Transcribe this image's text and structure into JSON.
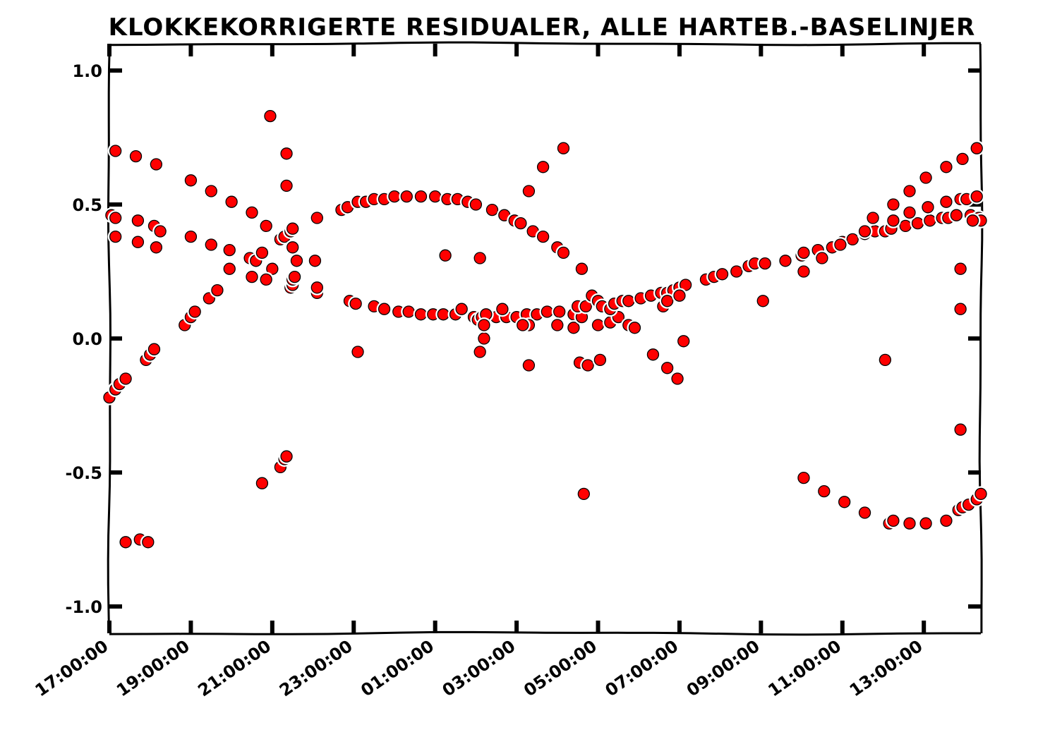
{
  "chart_data": {
    "type": "scatter",
    "title": "KLOKKEKORRIGERTE RESIDUALER, ALLE HARTEB.-BASELINJER",
    "xlabel": "",
    "ylabel": "",
    "x_axis": "time of day (hours from 17:00:00, wrapping past midnight)",
    "xlim": [
      0,
      21.4
    ],
    "ylim": [
      -1.1,
      1.1
    ],
    "grid": false,
    "legend": "none",
    "marker_color": "#ff0000",
    "marker_edge_color": "#000000",
    "xticks": [
      {
        "x": 0,
        "label": "17:00:00"
      },
      {
        "x": 2,
        "label": "19:00:00"
      },
      {
        "x": 4,
        "label": "21:00:00"
      },
      {
        "x": 6,
        "label": "23:00:00"
      },
      {
        "x": 8,
        "label": "01:00:00"
      },
      {
        "x": 10,
        "label": "03:00:00"
      },
      {
        "x": 12,
        "label": "05:00:00"
      },
      {
        "x": 14,
        "label": "07:00:00"
      },
      {
        "x": 16,
        "label": "09:00:00"
      },
      {
        "x": 18,
        "label": "11:00:00"
      },
      {
        "x": 20,
        "label": "13:00:00"
      }
    ],
    "yticks": [
      {
        "y": 1.0,
        "label": "1.0"
      },
      {
        "y": 0.5,
        "label": "0.5"
      },
      {
        "y": 0.0,
        "label": "0.0"
      },
      {
        "y": -0.5,
        "label": "-0.5"
      },
      {
        "y": -1.0,
        "label": "-1.0"
      }
    ],
    "points": [
      [
        0.15,
        0.7
      ],
      [
        0.65,
        0.68
      ],
      [
        1.15,
        0.65
      ],
      [
        2.0,
        0.59
      ],
      [
        2.5,
        0.55
      ],
      [
        3.0,
        0.51
      ],
      [
        3.5,
        0.47
      ],
      [
        3.85,
        0.42
      ],
      [
        0.05,
        0.46
      ],
      [
        0.15,
        0.45
      ],
      [
        0.7,
        0.44
      ],
      [
        1.1,
        0.42
      ],
      [
        1.25,
        0.4
      ],
      [
        0.15,
        0.38
      ],
      [
        0.7,
        0.36
      ],
      [
        1.15,
        0.34
      ],
      [
        2.0,
        0.38
      ],
      [
        2.5,
        0.35
      ],
      [
        2.95,
        0.33
      ],
      [
        3.45,
        0.3
      ],
      [
        3.6,
        0.29
      ],
      [
        3.75,
        0.32
      ],
      [
        4.0,
        0.26
      ],
      [
        0.0,
        -0.22
      ],
      [
        0.15,
        -0.19
      ],
      [
        0.25,
        -0.17
      ],
      [
        0.4,
        -0.15
      ],
      [
        0.9,
        -0.08
      ],
      [
        1.0,
        -0.06
      ],
      [
        1.1,
        -0.04
      ],
      [
        1.85,
        0.05
      ],
      [
        2.0,
        0.08
      ],
      [
        2.1,
        0.1
      ],
      [
        2.45,
        0.15
      ],
      [
        2.65,
        0.18
      ],
      [
        2.95,
        0.26
      ],
      [
        3.5,
        0.23
      ],
      [
        3.85,
        0.22
      ],
      [
        3.95,
        0.83
      ],
      [
        4.35,
        0.69
      ],
      [
        4.35,
        0.57
      ],
      [
        4.2,
        0.37
      ],
      [
        4.3,
        0.38
      ],
      [
        4.45,
        0.4
      ],
      [
        4.5,
        0.41
      ],
      [
        4.5,
        0.34
      ],
      [
        4.6,
        0.29
      ],
      [
        5.05,
        0.29
      ],
      [
        4.45,
        0.19
      ],
      [
        4.5,
        0.2
      ],
      [
        4.5,
        0.22
      ],
      [
        4.55,
        0.23
      ],
      [
        5.1,
        0.17
      ],
      [
        5.1,
        0.19
      ],
      [
        3.75,
        -0.54
      ],
      [
        4.2,
        -0.48
      ],
      [
        4.3,
        -0.45
      ],
      [
        4.35,
        -0.44
      ],
      [
        0.4,
        -0.76
      ],
      [
        0.75,
        -0.75
      ],
      [
        0.95,
        -0.76
      ],
      [
        5.1,
        0.45
      ],
      [
        5.7,
        0.48
      ],
      [
        5.85,
        0.49
      ],
      [
        6.1,
        0.51
      ],
      [
        6.3,
        0.51
      ],
      [
        6.5,
        0.52
      ],
      [
        6.75,
        0.52
      ],
      [
        7.0,
        0.53
      ],
      [
        7.3,
        0.53
      ],
      [
        7.65,
        0.53
      ],
      [
        8.0,
        0.53
      ],
      [
        8.3,
        0.52
      ],
      [
        8.55,
        0.52
      ],
      [
        8.8,
        0.51
      ],
      [
        9.0,
        0.5
      ],
      [
        9.4,
        0.48
      ],
      [
        9.7,
        0.46
      ],
      [
        9.95,
        0.44
      ],
      [
        10.1,
        0.43
      ],
      [
        10.4,
        0.4
      ],
      [
        10.65,
        0.38
      ],
      [
        11.0,
        0.34
      ],
      [
        11.15,
        0.32
      ],
      [
        11.6,
        0.26
      ],
      [
        5.9,
        0.14
      ],
      [
        6.05,
        0.13
      ],
      [
        6.5,
        0.12
      ],
      [
        6.75,
        0.11
      ],
      [
        7.1,
        0.1
      ],
      [
        7.35,
        0.1
      ],
      [
        7.65,
        0.09
      ],
      [
        7.95,
        0.09
      ],
      [
        8.2,
        0.09
      ],
      [
        8.5,
        0.09
      ],
      [
        8.65,
        0.11
      ],
      [
        8.95,
        0.08
      ],
      [
        9.05,
        0.07
      ],
      [
        9.15,
        0.08
      ],
      [
        9.5,
        0.08
      ],
      [
        9.75,
        0.08
      ],
      [
        10.0,
        0.08
      ],
      [
        10.25,
        0.09
      ],
      [
        10.5,
        0.09
      ],
      [
        10.75,
        0.1
      ],
      [
        11.05,
        0.1
      ],
      [
        11.4,
        0.09
      ],
      [
        9.25,
        0.09
      ],
      [
        9.65,
        0.11
      ],
      [
        10.3,
        0.05
      ],
      [
        11.0,
        0.05
      ],
      [
        11.4,
        0.04
      ],
      [
        12.0,
        0.05
      ],
      [
        12.3,
        0.06
      ],
      [
        12.5,
        0.08
      ],
      [
        12.75,
        0.05
      ],
      [
        12.9,
        0.04
      ],
      [
        6.1,
        -0.05
      ],
      [
        9.1,
        -0.05
      ],
      [
        9.2,
        0.0
      ],
      [
        9.2,
        0.05
      ],
      [
        10.15,
        0.05
      ],
      [
        10.3,
        0.55
      ],
      [
        10.65,
        0.64
      ],
      [
        11.15,
        0.71
      ],
      [
        8.25,
        0.31
      ],
      [
        9.1,
        0.3
      ],
      [
        10.3,
        -0.1
      ],
      [
        11.6,
        0.1
      ],
      [
        11.6,
        0.08
      ],
      [
        11.5,
        0.12
      ],
      [
        11.7,
        0.12
      ],
      [
        11.85,
        0.16
      ],
      [
        12.0,
        0.14
      ],
      [
        12.1,
        0.12
      ],
      [
        12.3,
        0.11
      ],
      [
        12.4,
        0.13
      ],
      [
        12.6,
        0.14
      ],
      [
        12.75,
        0.14
      ],
      [
        13.05,
        0.15
      ],
      [
        13.3,
        0.16
      ],
      [
        13.55,
        0.17
      ],
      [
        13.7,
        0.17
      ],
      [
        13.85,
        0.18
      ],
      [
        14.0,
        0.19
      ],
      [
        14.15,
        0.2
      ],
      [
        11.55,
        -0.09
      ],
      [
        11.75,
        -0.1
      ],
      [
        12.05,
        -0.08
      ],
      [
        11.65,
        -0.58
      ],
      [
        13.35,
        -0.06
      ],
      [
        13.7,
        -0.11
      ],
      [
        13.95,
        -0.15
      ],
      [
        14.1,
        -0.01
      ],
      [
        13.6,
        0.12
      ],
      [
        13.7,
        0.14
      ],
      [
        14.0,
        0.16
      ],
      [
        14.65,
        0.22
      ],
      [
        14.85,
        0.23
      ],
      [
        15.05,
        0.24
      ],
      [
        15.4,
        0.25
      ],
      [
        15.7,
        0.27
      ],
      [
        15.85,
        0.28
      ],
      [
        16.1,
        0.28
      ],
      [
        16.6,
        0.29
      ],
      [
        17.0,
        0.31
      ],
      [
        17.4,
        0.33
      ],
      [
        17.75,
        0.34
      ],
      [
        18.0,
        0.36
      ],
      [
        18.25,
        0.37
      ],
      [
        18.55,
        0.39
      ],
      [
        18.8,
        0.4
      ],
      [
        19.05,
        0.4
      ],
      [
        19.2,
        0.41
      ],
      [
        19.55,
        0.42
      ],
      [
        19.85,
        0.43
      ],
      [
        20.15,
        0.44
      ],
      [
        20.45,
        0.45
      ],
      [
        20.6,
        0.45
      ],
      [
        20.8,
        0.46
      ],
      [
        21.15,
        0.46
      ],
      [
        16.05,
        0.14
      ],
      [
        17.05,
        0.25
      ],
      [
        19.05,
        -0.08
      ],
      [
        17.05,
        0.32
      ],
      [
        17.5,
        0.3
      ],
      [
        17.95,
        0.35
      ],
      [
        18.55,
        0.4
      ],
      [
        18.75,
        0.45
      ],
      [
        19.25,
        0.5
      ],
      [
        19.65,
        0.55
      ],
      [
        20.05,
        0.6
      ],
      [
        20.55,
        0.64
      ],
      [
        20.95,
        0.67
      ],
      [
        21.3,
        0.71
      ],
      [
        19.25,
        0.44
      ],
      [
        19.65,
        0.47
      ],
      [
        20.1,
        0.49
      ],
      [
        20.55,
        0.51
      ],
      [
        20.9,
        0.52
      ],
      [
        21.05,
        0.52
      ],
      [
        21.3,
        0.53
      ],
      [
        21.35,
        0.45
      ],
      [
        21.4,
        0.44
      ],
      [
        21.2,
        0.44
      ],
      [
        20.9,
        0.26
      ],
      [
        20.9,
        0.11
      ],
      [
        20.9,
        -0.34
      ],
      [
        17.05,
        -0.52
      ],
      [
        17.55,
        -0.57
      ],
      [
        18.05,
        -0.61
      ],
      [
        18.55,
        -0.65
      ],
      [
        19.15,
        -0.69
      ],
      [
        19.25,
        -0.68
      ],
      [
        19.65,
        -0.69
      ],
      [
        20.05,
        -0.69
      ],
      [
        20.55,
        -0.68
      ],
      [
        20.85,
        -0.64
      ],
      [
        20.95,
        -0.63
      ],
      [
        21.1,
        -0.62
      ],
      [
        21.3,
        -0.6
      ],
      [
        21.4,
        -0.58
      ]
    ]
  }
}
